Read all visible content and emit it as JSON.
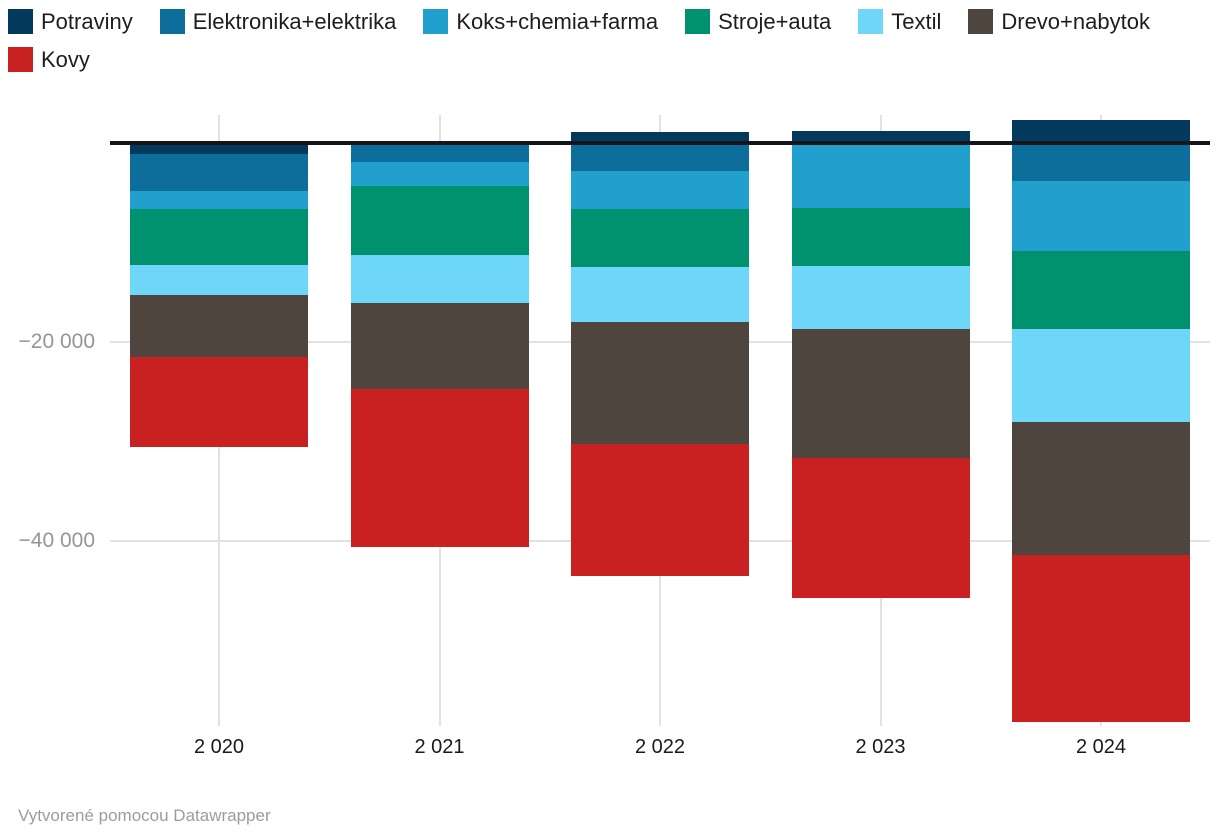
{
  "footer": {
    "credit": "Vytvorené pomocou Datawrapper"
  },
  "chart_data": {
    "type": "bar",
    "subtype": "stacked-column",
    "title": "",
    "xlabel": "",
    "ylabel": "",
    "legend_position": "top",
    "grid": "on",
    "categories": [
      "2 020",
      "2 021",
      "2 022",
      "2 023",
      "2 024"
    ],
    "series": [
      {
        "name": "Potraviny",
        "color": "#04395e",
        "values": [
          -1100,
          200,
          1100,
          1200,
          2300
        ]
      },
      {
        "name": "Elektronika+elektrika",
        "color": "#0d6e9c",
        "values": [
          -3700,
          -1900,
          -2800,
          -200,
          -3800
        ]
      },
      {
        "name": "Koks+chemia+farma",
        "color": "#22a0cd",
        "values": [
          -1800,
          -2400,
          -3800,
          -6300,
          -7000
        ]
      },
      {
        "name": "Stroje+auta",
        "color": "#00916e",
        "values": [
          -5600,
          -6900,
          -5800,
          -5800,
          -7900
        ]
      },
      {
        "name": "Textil",
        "color": "#6ed7f9",
        "values": [
          -3100,
          -4900,
          -5600,
          -6400,
          -9300
        ]
      },
      {
        "name": "Drevo+nabytok",
        "color": "#4d453e",
        "values": [
          -6200,
          -8600,
          -12200,
          -12900,
          -13400
        ]
      },
      {
        "name": "Kovy",
        "color": "#c92121",
        "values": [
          -9000,
          -15900,
          -13300,
          -14100,
          -16700
        ]
      }
    ],
    "totals_negative": [
      -30500,
      -40600,
      -43500,
      -45700,
      -58100
    ],
    "yaxis": {
      "ticks": [
        {
          "value": -20000,
          "label": "−20 000"
        },
        {
          "value": -40000,
          "label": "−40 000"
        }
      ],
      "baseline_value": 0,
      "ylim": [
        -60000,
        4000
      ]
    },
    "baseline_color": "#14161a",
    "gridline_color": "#e2e2e2"
  }
}
